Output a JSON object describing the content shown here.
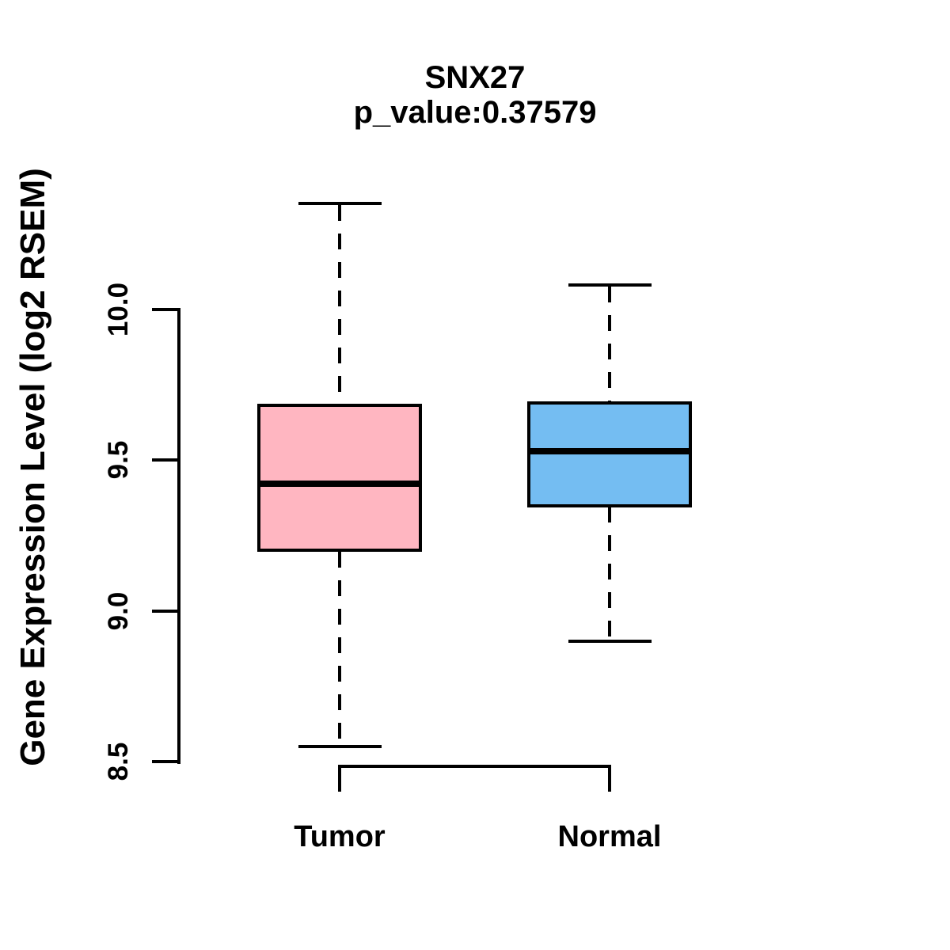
{
  "title": "SNX27",
  "subtitle": "p_value:0.37579",
  "chart_data": {
    "type": "boxplot",
    "title": "SNX27",
    "subtitle": "p_value:0.37579",
    "p_value": 0.37579,
    "xlabel": "",
    "ylabel": "Gene Expression Level (log2 RSEM)",
    "ylim": [
      8.4,
      10.45
    ],
    "yticks": [
      {
        "value": 8.5,
        "label": "8.5"
      },
      {
        "value": 9.0,
        "label": "9.0"
      },
      {
        "value": 9.5,
        "label": "9.5"
      },
      {
        "value": 10.0,
        "label": "10.0"
      }
    ],
    "grid": false,
    "legend": null,
    "groups": [
      {
        "label": "Tumor",
        "color": "#FFB6C1",
        "whisker_low": 8.55,
        "q1": 9.2,
        "median": 9.42,
        "q3": 9.68,
        "whisker_high": 10.35
      },
      {
        "label": "Normal",
        "color": "#74BDF2",
        "whisker_low": 8.9,
        "q1": 9.35,
        "median": 9.53,
        "q3": 9.69,
        "whisker_high": 10.08
      }
    ]
  },
  "colors": {
    "background": "#FFFFFF",
    "axis": "#000000",
    "box_border": "#000000",
    "median": "#000000",
    "tumor_fill": "#FFB6C1",
    "normal_fill": "#74BDF2"
  }
}
